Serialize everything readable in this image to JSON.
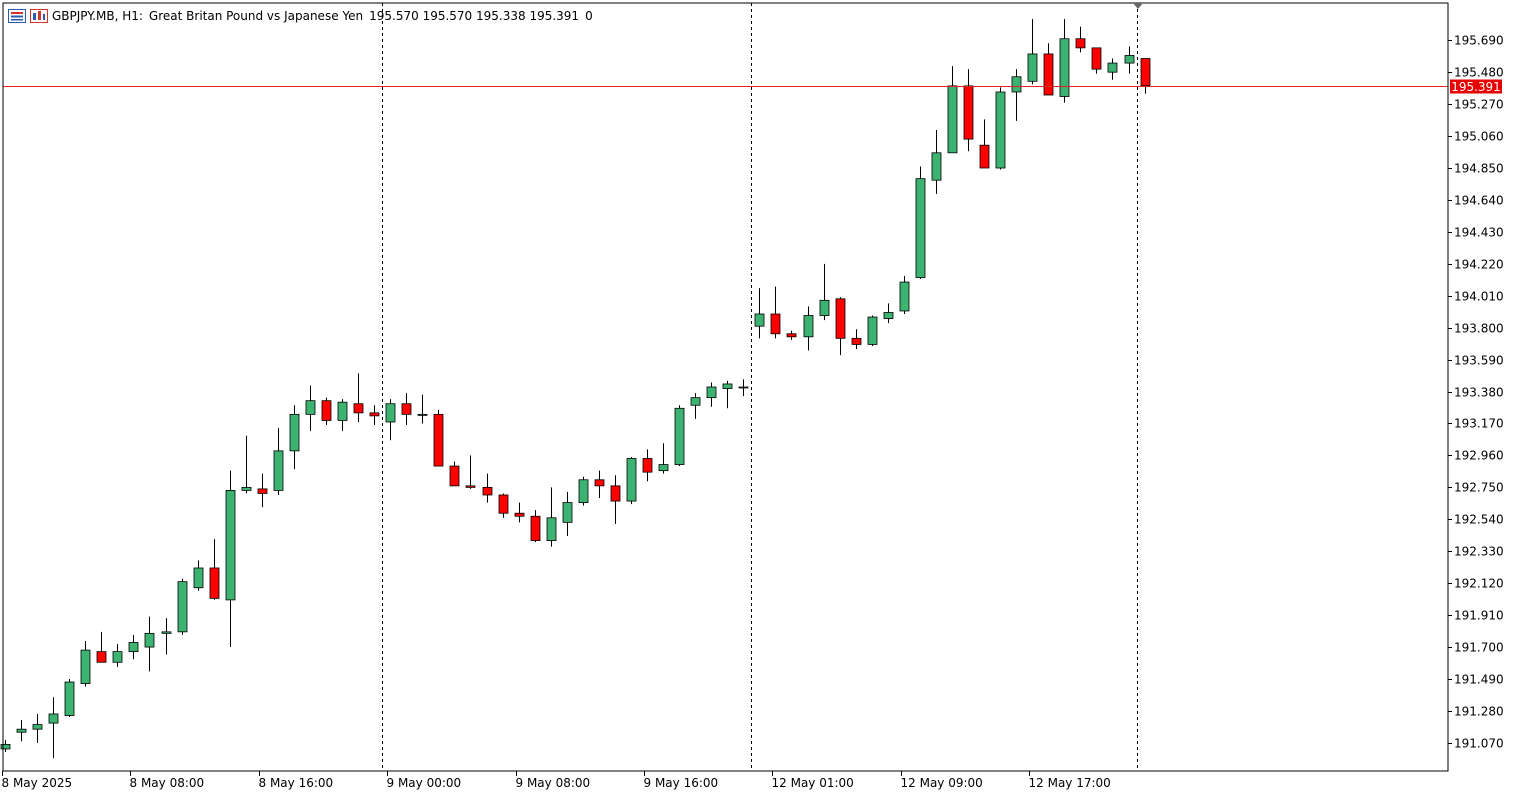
{
  "header": {
    "symbol": "GBPJPY.MB, H1:",
    "description": "Great Britan Pound vs Japanese Yen",
    "ohlc": "195.570 195.570 195.338 195.391",
    "volume": "0"
  },
  "icons": [
    "chart-list-icon",
    "chart-window-icon"
  ],
  "colors": {
    "bull": "#3cb371",
    "bear": "#ff0000",
    "outline": "#000000",
    "price_line": "#e32323",
    "price_tag_bg": "#e60000",
    "price_tag_text": "#ffffff",
    "session_separator": "#000000"
  },
  "chart_data": {
    "type": "candlestick",
    "ylim": [
      190.885,
      195.935
    ],
    "yticks": [
      "191.070",
      "191.280",
      "191.490",
      "191.700",
      "191.910",
      "192.120",
      "192.330",
      "192.540",
      "192.750",
      "192.960",
      "193.170",
      "193.380",
      "193.590",
      "193.800",
      "194.010",
      "194.220",
      "194.430",
      "194.640",
      "194.850",
      "195.060",
      "195.270",
      "195.480",
      "195.690"
    ],
    "xticks": [
      {
        "index": 0,
        "label": "8 May 2025"
      },
      {
        "index": 8,
        "label": "8 May 08:00"
      },
      {
        "index": 16,
        "label": "8 May 16:00"
      },
      {
        "index": 24,
        "label": "9 May 00:00"
      },
      {
        "index": 32,
        "label": "9 May 08:00"
      },
      {
        "index": 40,
        "label": "9 May 16:00"
      },
      {
        "index": 48,
        "label": "12 May 01:00"
      },
      {
        "index": 56,
        "label": "12 May 09:00"
      },
      {
        "index": 64,
        "label": "12 May 17:00"
      }
    ],
    "separators": [
      24,
      47,
      71
    ],
    "current_price": "195.391",
    "candles": [
      [
        191.03,
        191.09,
        191.01,
        191.06
      ],
      [
        191.14,
        191.22,
        191.08,
        191.16
      ],
      [
        191.16,
        191.26,
        191.07,
        191.19
      ],
      [
        191.2,
        191.37,
        190.97,
        191.26
      ],
      [
        191.25,
        191.49,
        191.24,
        191.47
      ],
      [
        191.46,
        191.74,
        191.44,
        191.68
      ],
      [
        191.67,
        191.8,
        191.6,
        191.6
      ],
      [
        191.6,
        191.72,
        191.57,
        191.67
      ],
      [
        191.67,
        191.78,
        191.62,
        191.73
      ],
      [
        191.7,
        191.9,
        191.54,
        191.79
      ],
      [
        191.79,
        191.89,
        191.65,
        191.8
      ],
      [
        191.8,
        192.15,
        191.78,
        192.13
      ],
      [
        192.09,
        192.27,
        192.07,
        192.22
      ],
      [
        192.22,
        192.41,
        192.01,
        192.02
      ],
      [
        192.01,
        192.86,
        191.7,
        192.73
      ],
      [
        192.73,
        193.09,
        192.71,
        192.75
      ],
      [
        192.74,
        192.84,
        192.62,
        192.71
      ],
      [
        192.73,
        193.14,
        192.7,
        192.99
      ],
      [
        192.99,
        193.29,
        192.87,
        193.23
      ],
      [
        193.23,
        193.42,
        193.12,
        193.32
      ],
      [
        193.32,
        193.34,
        193.16,
        193.19
      ],
      [
        193.19,
        193.33,
        193.12,
        193.31
      ],
      [
        193.3,
        193.5,
        193.18,
        193.24
      ],
      [
        193.24,
        193.29,
        193.16,
        193.22
      ],
      [
        193.18,
        193.33,
        193.06,
        193.3
      ],
      [
        193.3,
        193.37,
        193.16,
        193.23
      ],
      [
        193.23,
        193.36,
        193.17,
        193.23
      ],
      [
        193.23,
        193.26,
        192.93,
        192.89
      ],
      [
        192.89,
        192.92,
        192.76,
        192.76
      ],
      [
        192.76,
        192.96,
        192.74,
        192.75
      ],
      [
        192.75,
        192.84,
        192.65,
        192.7
      ],
      [
        192.7,
        192.71,
        192.55,
        192.58
      ],
      [
        192.58,
        192.65,
        192.52,
        192.56
      ],
      [
        192.56,
        192.6,
        192.39,
        192.4
      ],
      [
        192.4,
        192.75,
        192.36,
        192.55
      ],
      [
        192.52,
        192.72,
        192.43,
        192.65
      ],
      [
        192.65,
        192.82,
        192.63,
        192.8
      ],
      [
        192.8,
        192.86,
        192.68,
        192.76
      ],
      [
        192.76,
        192.83,
        192.51,
        192.66
      ],
      [
        192.66,
        192.95,
        192.64,
        192.94
      ],
      [
        192.94,
        193.0,
        192.79,
        192.85
      ],
      [
        192.86,
        193.04,
        192.84,
        192.9
      ],
      [
        192.9,
        193.29,
        192.89,
        193.27
      ],
      [
        193.29,
        193.37,
        193.2,
        193.34
      ],
      [
        193.34,
        193.44,
        193.28,
        193.41
      ],
      [
        193.4,
        193.45,
        193.27,
        193.43
      ],
      [
        193.41,
        193.46,
        193.35,
        193.41
      ],
      [
        193.81,
        194.06,
        193.73,
        193.89
      ],
      [
        193.89,
        194.07,
        193.73,
        193.76
      ],
      [
        193.76,
        193.78,
        193.72,
        193.74
      ],
      [
        193.74,
        193.94,
        193.65,
        193.88
      ],
      [
        193.88,
        194.22,
        193.85,
        193.98
      ],
      [
        193.99,
        194.0,
        193.62,
        193.73
      ],
      [
        193.73,
        193.79,
        193.66,
        193.69
      ],
      [
        193.69,
        193.88,
        193.68,
        193.87
      ],
      [
        193.86,
        193.96,
        193.83,
        193.9
      ],
      [
        193.91,
        194.14,
        193.89,
        194.1
      ],
      [
        194.13,
        194.86,
        194.12,
        194.78
      ],
      [
        194.77,
        195.1,
        194.68,
        194.95
      ],
      [
        194.95,
        195.52,
        194.95,
        195.39
      ],
      [
        195.39,
        195.5,
        194.96,
        195.04
      ],
      [
        195.0,
        195.17,
        194.86,
        194.85
      ],
      [
        194.85,
        195.38,
        194.84,
        195.35
      ],
      [
        195.35,
        195.5,
        195.16,
        195.45
      ],
      [
        195.42,
        195.83,
        195.4,
        195.6
      ],
      [
        195.6,
        195.67,
        195.33,
        195.33
      ],
      [
        195.32,
        195.83,
        195.28,
        195.7
      ],
      [
        195.7,
        195.78,
        195.61,
        195.64
      ],
      [
        195.64,
        195.64,
        195.47,
        195.5
      ],
      [
        195.48,
        195.57,
        195.43,
        195.54
      ],
      [
        195.54,
        195.65,
        195.47,
        195.59
      ],
      [
        195.57,
        195.57,
        195.338,
        195.391
      ]
    ]
  }
}
